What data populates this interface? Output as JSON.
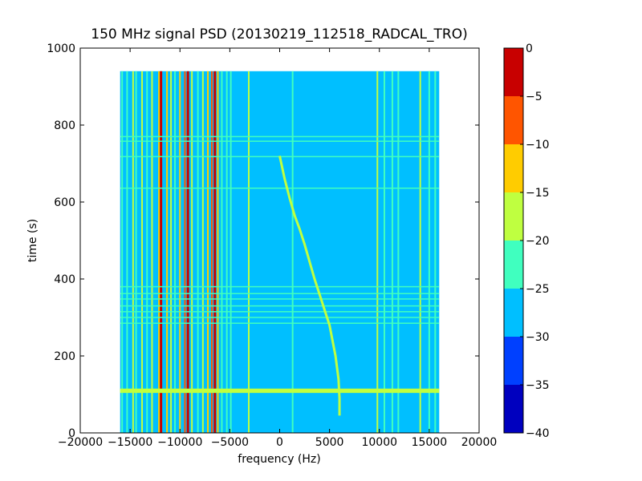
{
  "chart_data": {
    "type": "heatmap",
    "title": "150 MHz signal PSD (20130219_112518_RADCAL_TRO)",
    "xlabel": "frequency (Hz)",
    "ylabel": "time (s)",
    "xlim": [
      -20000,
      20000
    ],
    "ylim": [
      0,
      1000
    ],
    "x_ticks": [
      -20000,
      -15000,
      -10000,
      -5000,
      0,
      5000,
      10000,
      15000,
      20000
    ],
    "x_tick_labels": [
      "−20000",
      "−15000",
      "−10000",
      "−5000",
      "0",
      "5000",
      "10000",
      "15000",
      "20000"
    ],
    "y_ticks": [
      0,
      200,
      400,
      600,
      800,
      1000
    ],
    "y_tick_labels": [
      "0",
      "200",
      "400",
      "600",
      "800",
      "1000"
    ],
    "data_extent": {
      "x": [
        -16000,
        16000
      ],
      "y": [
        0,
        940
      ]
    },
    "background_level_db": -27.5,
    "colorbar": {
      "range": [
        -40,
        0
      ],
      "levels": [
        -40,
        -35,
        -30,
        -25,
        -20,
        -15,
        -10,
        -5,
        0
      ],
      "tick_labels": [
        "−40",
        "−35",
        "−30",
        "−25",
        "−20",
        "−15",
        "−10",
        "−5",
        "0"
      ],
      "colors": [
        "#0000bf",
        "#0040ff",
        "#00bfff",
        "#40ffbf",
        "#bfff40",
        "#ffcc00",
        "#ff5500",
        "#c80000"
      ]
    },
    "features": {
      "vertical_lines": [
        {
          "x": -15800,
          "level_db": -22.5
        },
        {
          "x": -15300,
          "level_db": -22.5
        },
        {
          "x": -14700,
          "level_db": -17.5
        },
        {
          "x": -14400,
          "level_db": -22.5
        },
        {
          "x": -13800,
          "level_db": -17.5
        },
        {
          "x": -13300,
          "level_db": -22.5
        },
        {
          "x": -12800,
          "level_db": -17.5
        },
        {
          "x": -12100,
          "level_db": -12.5
        },
        {
          "x": -11900,
          "level_db": -2.5
        },
        {
          "x": -11300,
          "level_db": -12.5
        },
        {
          "x": -10900,
          "level_db": -17.5
        },
        {
          "x": -10500,
          "level_db": -22.5
        },
        {
          "x": -10000,
          "level_db": -12.5
        },
        {
          "x": -9500,
          "level_db": -7.5
        },
        {
          "x": -9200,
          "level_db": -2.5
        },
        {
          "x": -8800,
          "level_db": -17.5
        },
        {
          "x": -8200,
          "level_db": -22.5
        },
        {
          "x": -7700,
          "level_db": -17.5
        },
        {
          "x": -7200,
          "level_db": -12.5
        },
        {
          "x": -6800,
          "level_db": -7.5
        },
        {
          "x": -6500,
          "level_db": -2.5
        },
        {
          "x": -6200,
          "level_db": -12.5
        },
        {
          "x": -5800,
          "level_db": -22.5
        },
        {
          "x": -5300,
          "level_db": -22.5
        },
        {
          "x": -4900,
          "level_db": -22.5
        },
        {
          "x": -3100,
          "level_db": -17.5
        },
        {
          "x": 1300,
          "level_db": -22.5
        },
        {
          "x": 9800,
          "level_db": -17.5
        },
        {
          "x": 10500,
          "level_db": -22.5
        },
        {
          "x": 11300,
          "level_db": -22.5
        },
        {
          "x": 11900,
          "level_db": -22.5
        },
        {
          "x": 14100,
          "level_db": -17.5
        },
        {
          "x": 15000,
          "level_db": -22.5
        },
        {
          "x": 15600,
          "level_db": -22.5
        }
      ],
      "horizontal_lines": [
        {
          "y": 107,
          "level_db": -17.5
        },
        {
          "y": 112,
          "level_db": -17.5
        },
        {
          "y": 285,
          "level_db": -22.5
        },
        {
          "y": 300,
          "level_db": -22.5
        },
        {
          "y": 315,
          "level_db": -22.5
        },
        {
          "y": 330,
          "level_db": -22.5
        },
        {
          "y": 348,
          "level_db": -22.5
        },
        {
          "y": 362,
          "level_db": -22.5
        },
        {
          "y": 380,
          "level_db": -22.5
        },
        {
          "y": 636,
          "level_db": -22.5
        },
        {
          "y": 718,
          "level_db": -22.5
        },
        {
          "y": 758,
          "level_db": -22.5
        },
        {
          "y": 770,
          "level_db": -22.5
        }
      ],
      "drifting_signal": {
        "level_db": -17.5,
        "points": [
          [
            0,
            720
          ],
          [
            500,
            660
          ],
          [
            1000,
            610
          ],
          [
            1500,
            565
          ],
          [
            2000,
            530
          ],
          [
            2500,
            490
          ],
          [
            3000,
            445
          ],
          [
            3500,
            400
          ],
          [
            4000,
            360
          ],
          [
            4500,
            320
          ],
          [
            5000,
            280
          ],
          [
            5300,
            240
          ],
          [
            5600,
            200
          ],
          [
            5900,
            140
          ],
          [
            6000,
            90
          ],
          [
            6000,
            45
          ]
        ]
      }
    }
  }
}
